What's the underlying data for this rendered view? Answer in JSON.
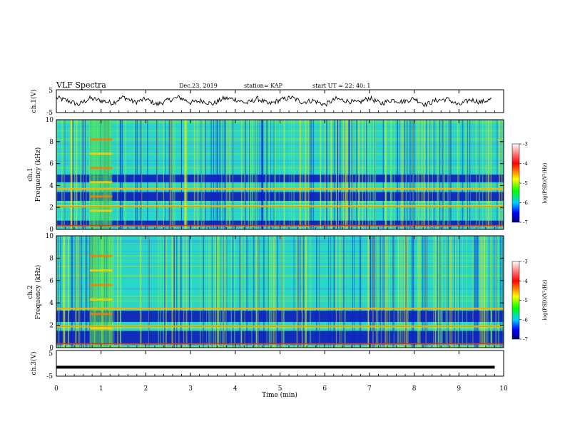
{
  "header": {
    "title": "VLF Spectra",
    "date": "Dec.23, 2019",
    "station": "station= KAP",
    "start": "start  UT =   22: 40: 1"
  },
  "colors": {
    "spectrum_background": "#29d7c8",
    "strong": "#ff2a00",
    "bright": "#ffe900",
    "weak": "#0b10b8",
    "noise_line": "#000000"
  },
  "chart_data": [
    {
      "type": "line",
      "name": "ch1-waveform",
      "ylabel": "ch.1(V)",
      "ylim": [
        -5,
        5
      ],
      "ytick_labels": [
        "5",
        "-5"
      ],
      "xlim": [
        0,
        10
      ],
      "x": [
        0,
        0.25,
        0.5,
        0.75,
        1,
        1.25,
        1.5,
        1.75,
        2,
        2.25,
        2.5,
        2.75,
        3,
        3.25,
        3.5,
        3.75,
        4,
        4.25,
        4.5,
        4.75,
        5,
        5.25,
        5.5,
        5.75,
        6,
        6.25,
        6.5,
        6.75,
        7,
        7.25,
        7.5,
        7.75,
        8,
        8.25,
        8.5,
        8.75,
        9,
        9.25,
        9.5,
        9.75
      ],
      "y": [
        1.5,
        0.2,
        -1.5,
        1.2,
        0.3,
        -0.8,
        1.8,
        -0.5,
        0.9,
        -1.4,
        0.4,
        1.7,
        -0.6,
        0.2,
        -1.2,
        1.3,
        0.8,
        -0.9,
        1.1,
        -1.3,
        0.5,
        1.6,
        -0.4,
        0.3,
        -1.6,
        1.0,
        0.1,
        -0.7,
        1.4,
        -1.1,
        0.6,
        -0.3,
        1.2,
        -1.5,
        0.4,
        0.9,
        -1.8,
        0.7,
        -0.4,
        1.0
      ]
    },
    {
      "type": "heatmap",
      "name": "ch1-spectrogram",
      "ylabel": "ch.1\nFrequency (kHz)",
      "xlim": [
        0,
        10
      ],
      "ylim": [
        0,
        10
      ],
      "yticks": [
        0,
        2,
        4,
        6,
        8,
        10
      ],
      "colorbar": {
        "ticks": [
          -3,
          -4,
          -5,
          -6,
          -7
        ],
        "label": "log(PSD)(V²/Hz)"
      },
      "strong_bands_khz": [
        2.1,
        3.7
      ],
      "dark_bands_khz": [
        [
          2.6,
          3.4
        ],
        [
          4.3,
          5.0
        ],
        [
          0.3,
          0.8
        ]
      ],
      "burst_minutes": [
        0.75,
        1.25
      ]
    },
    {
      "type": "heatmap",
      "name": "ch2-spectrogram",
      "ylabel": "ch.2\nFrequency (kHz)",
      "xlim": [
        0,
        10
      ],
      "ylim": [
        0,
        10
      ],
      "yticks": [
        0,
        2,
        4,
        6,
        8,
        10
      ],
      "colorbar": {
        "ticks": [
          -3,
          -4,
          -5,
          -6,
          -7
        ],
        "label": "log(PSD)(V²/Hz)"
      },
      "strong_bands_khz": [
        1.9,
        3.5
      ],
      "dark_bands_khz": [
        [
          2.3,
          3.3
        ],
        [
          0.3,
          1.5
        ]
      ],
      "burst_minutes": [
        0.75,
        1.25
      ]
    },
    {
      "type": "line",
      "name": "ch3-level",
      "ylabel": "ch.3(V)",
      "ylim": [
        -5,
        5
      ],
      "ytick_labels": [
        "5",
        "-5"
      ],
      "xlim": [
        0,
        10
      ],
      "x": [
        0,
        9.8
      ],
      "y": [
        -1.5,
        -1.5
      ]
    }
  ],
  "xaxis": {
    "label": "Time (min)",
    "ticks": [
      "0",
      "1",
      "2",
      "3",
      "4",
      "5",
      "6",
      "7",
      "8",
      "9",
      "10"
    ]
  }
}
